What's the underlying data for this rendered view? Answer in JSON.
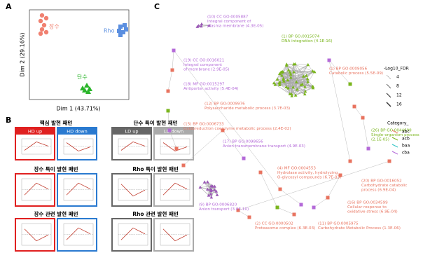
{
  "panels": {
    "a": {
      "label": "A",
      "x_axis": "Dim 1 (43.71%)",
      "y_axis": "Dim 2 (29.16%)",
      "groups": [
        {
          "name": "장수",
          "color": "#f08070"
        },
        {
          "name": "Rho",
          "color": "#5b8fe0"
        },
        {
          "name": "단수",
          "color": "#2ab52a"
        }
      ]
    },
    "b": {
      "label": "B",
      "sections": [
        "핵심 발현 패턴",
        "단수 특이 발현 패턴",
        "장수 특이 발현 패턴",
        "Rho 특이 발현 패턴",
        "장수 관련 발현 패턴",
        "Rho 관련 발현 패턴"
      ],
      "box_headers": [
        "HD up",
        "HD down",
        "LD up",
        "LD down"
      ]
    },
    "c": {
      "label": "C",
      "annotations": [
        {
          "color": "#b46ad8",
          "lines": [
            "(10) CC GO:0005887",
            "Integral component of",
            "plasma membrane (4.3E-05)"
          ]
        },
        {
          "color": "#7ab51d",
          "lines": [
            "(1) BP GO:0015074",
            "DNA integration (4.1E-16)"
          ]
        },
        {
          "color": "#b46ad8",
          "lines": [
            "(19) CC GO:0016021",
            "Integral component",
            "of membrane (2.9E-05)"
          ]
        },
        {
          "color": "#e8735f",
          "lines": [
            "(1) BP GO:0009056",
            "Catabolic process (5.5E-09)"
          ]
        },
        {
          "color": "#b46ad8",
          "lines": [
            "(18) MF GO:0015297",
            "Antiporter activity (5.4E-04)"
          ]
        },
        {
          "color": "#e8735f",
          "lines": [
            "(12) BP GO:0009976",
            "Polysaccharide metabolic process (3.7E-03)"
          ]
        },
        {
          "color": "#e8735f",
          "lines": [
            "(15) BP GO:0006733",
            "Oxidoreduction coenzyme metabolic process (2.4E-02)"
          ]
        },
        {
          "color": "#b46ad8",
          "lines": [
            "(17) BP GO:0098656",
            "Anion transmembrane transport (4.9E-03)"
          ]
        },
        {
          "color": "#7ab51d",
          "lines": [
            "(26) BP GO:0044699",
            "Single-organism process",
            "(2.1E-05)"
          ]
        },
        {
          "color": "#e8735f",
          "lines": [
            "(4) MF GO:0004553",
            "Hydrolase activity, hydrolyzing",
            "O-glycosyl compounds (6.7E-03)"
          ]
        },
        {
          "color": "#e8735f",
          "lines": [
            "(20) BP GO:0016052",
            "Carbohydrate catabolic",
            "process (6.9E-04)"
          ]
        },
        {
          "color": "#e8735f",
          "lines": [
            "(16) BP GO:0034599",
            "Cellular response to",
            "oxidative stress (6.9E-04)"
          ]
        },
        {
          "color": "#b46ad8",
          "lines": [
            "(9) BP GO:0006820",
            "Anion transport (3.8E-10)"
          ]
        },
        {
          "color": "#e8735f",
          "lines": [
            "(2) CC GO:0000502",
            "Proteasome complex (6.3E-03)"
          ]
        },
        {
          "color": "#e8735f",
          "lines": [
            "(11) BP GO:0005975",
            "Carbohydrate Metabolic Process (1.3E-06)"
          ]
        }
      ],
      "legend": {
        "size_title": "-Log10_FDR",
        "sizes": [
          4,
          8,
          12,
          16
        ],
        "color_title": "Category_",
        "categories": [
          {
            "name": "abc",
            "color": "#f08070"
          },
          {
            "name": "acb",
            "color": "#7ab51d"
          },
          {
            "name": "baa",
            "color": "#2ec4c4"
          },
          {
            "name": "cba",
            "color": "#b46ad8"
          }
        ]
      }
    }
  }
}
